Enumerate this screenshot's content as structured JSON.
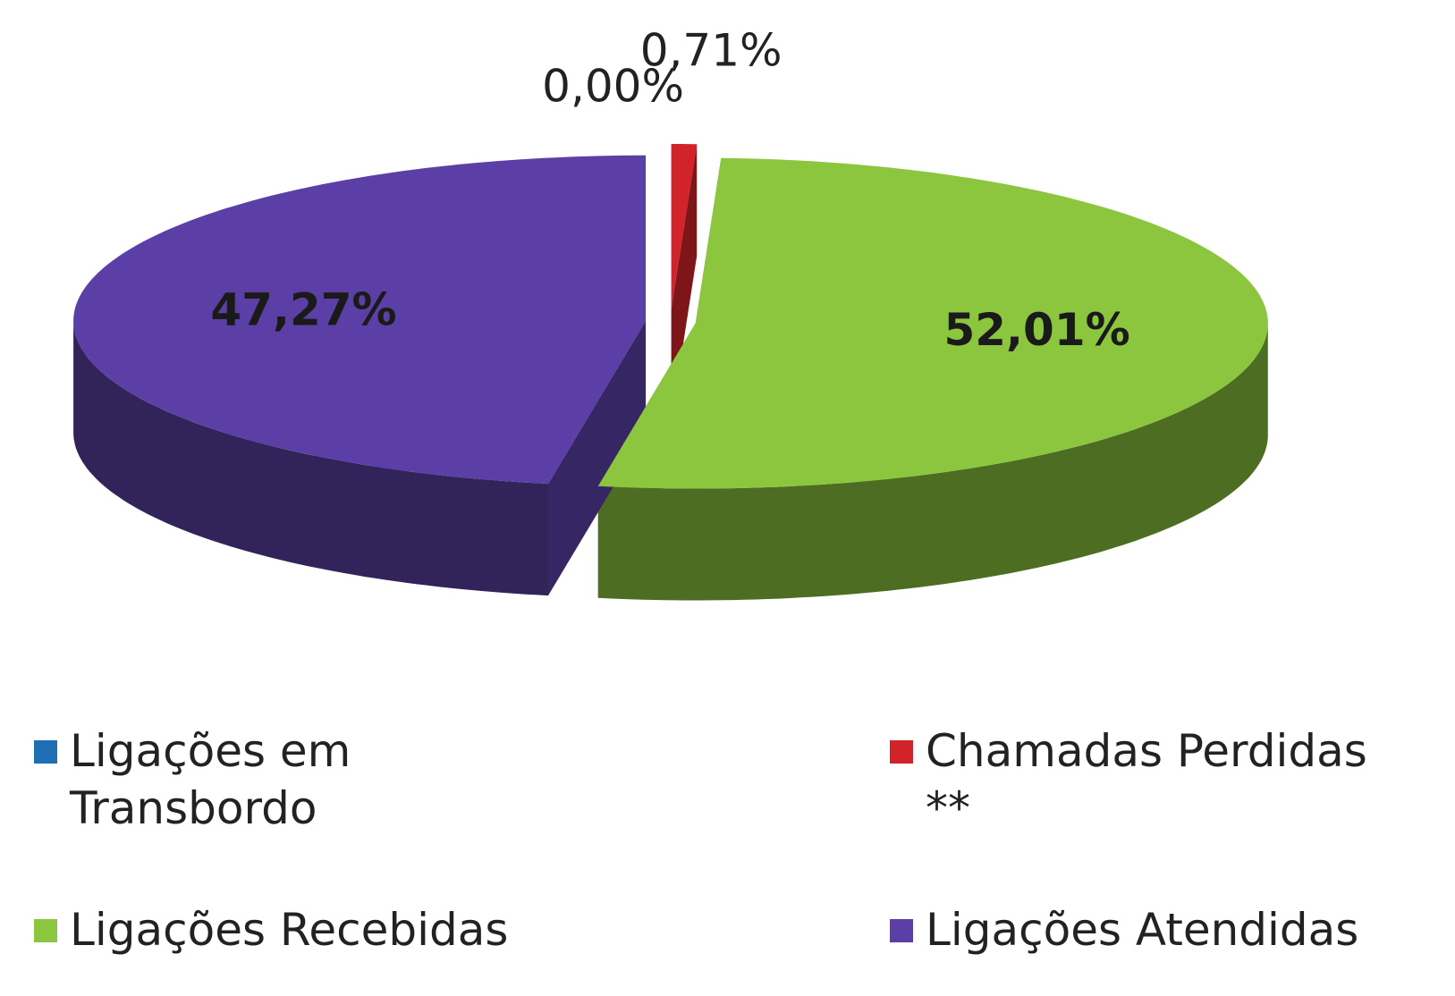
{
  "chart_data": {
    "type": "pie",
    "three_d": true,
    "categories": [
      "Ligações em Transbordo",
      "Chamadas Perdidas **",
      "Ligações Recebidas",
      "Ligações Atendidas"
    ],
    "values": [
      0,
      0.71,
      52.01,
      47.27
    ],
    "value_labels": [
      "0,00%",
      "0,71%",
      "52,01%",
      "47,27%"
    ],
    "colors": [
      "#1f6fb5",
      "#d2232a",
      "#8cc63f",
      "#5b3fa6"
    ],
    "legend": "bottom"
  }
}
